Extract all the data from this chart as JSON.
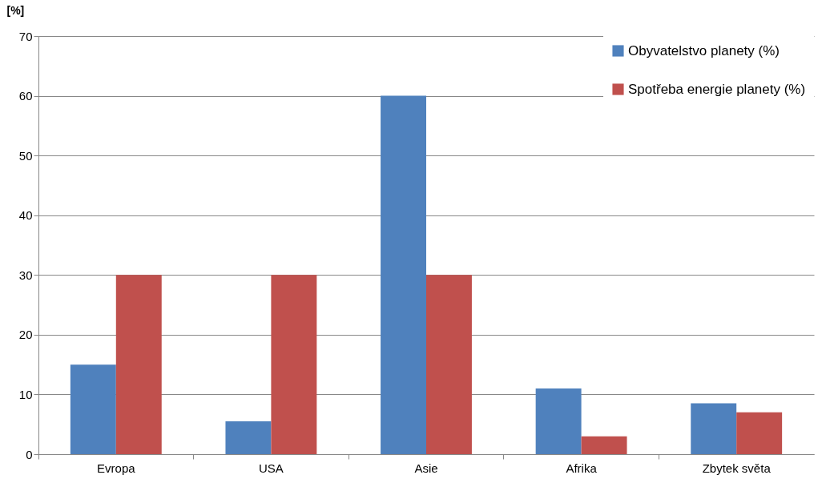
{
  "chart_data": {
    "type": "bar",
    "ylabel": "[%]",
    "categories": [
      "Evropa",
      "USA",
      "Asie",
      "Afrika",
      "Zbytek světa"
    ],
    "series": [
      {
        "name": "Obyvatelstvo planety (%)",
        "color": "#4f81bd",
        "values": [
          15,
          5.5,
          60,
          11,
          8.5
        ]
      },
      {
        "name": "Spotřeba energie planety (%)",
        "color": "#c0504d",
        "values": [
          30,
          30,
          30,
          3,
          7
        ]
      }
    ],
    "ylim": [
      0,
      70
    ],
    "yticks": [
      0,
      10,
      20,
      30,
      40,
      50,
      60,
      70
    ],
    "grid": "y",
    "legend": "top right"
  }
}
